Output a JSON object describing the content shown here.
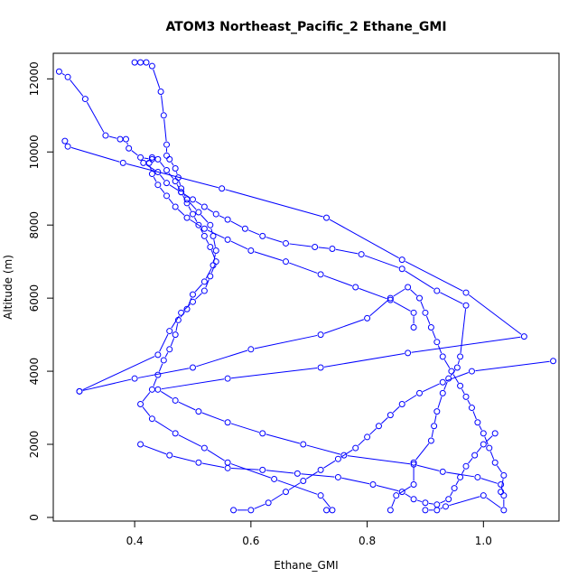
{
  "chart_data": {
    "type": "line",
    "title": "ATOM3 Northeast_Pacific_2 Ethane_GMI",
    "xlabel": "Ethane_GMI",
    "ylabel": "Altitude (m)",
    "xlim": [
      0.26,
      1.13
    ],
    "ylim": [
      -100,
      12700
    ],
    "xticks": [
      0.4,
      0.6,
      0.8,
      1.0
    ],
    "xtick_labels": [
      "0.4",
      "0.6",
      "0.8",
      "1.0"
    ],
    "yticks": [
      0,
      2000,
      4000,
      6000,
      8000,
      10000,
      12000
    ],
    "ytick_labels": [
      "0",
      "2000",
      "4000",
      "6000",
      "8000",
      "10000",
      "12000"
    ],
    "grid": false,
    "legend": "none",
    "line_color": "#0000ff",
    "marker": "open-circle",
    "series": [
      {
        "x": [
          0.27,
          0.285,
          0.315,
          0.35,
          0.375,
          0.385,
          0.39,
          0.41,
          0.43,
          0.415,
          0.44,
          0.455,
          0.48,
          0.5,
          0.52,
          0.54,
          0.56,
          0.59,
          0.62,
          0.66,
          0.71,
          0.74,
          0.79,
          0.86,
          0.92,
          0.97,
          0.96,
          0.955,
          0.94,
          0.93,
          0.92,
          0.915,
          0.91,
          0.88,
          0.88,
          0.85,
          0.84
        ],
        "y": [
          12200,
          12050,
          11450,
          10450,
          10350,
          10350,
          10100,
          9850,
          9800,
          9700,
          9450,
          9150,
          8900,
          8700,
          8500,
          8300,
          8150,
          7900,
          7700,
          7500,
          7400,
          7350,
          7200,
          6800,
          6200,
          5800,
          4400,
          4100,
          3800,
          3400,
          2900,
          2500,
          2100,
          1500,
          900,
          600,
          200
        ]
      },
      {
        "x": [
          0.28,
          0.285,
          0.38,
          0.55,
          0.73,
          0.86,
          0.97,
          1.07,
          0.87,
          0.72,
          0.56,
          0.44,
          0.47,
          0.51,
          0.56,
          0.62,
          0.69,
          0.76,
          0.88,
          0.93,
          0.99,
          1.03,
          1.035,
          1.035,
          1.0,
          0.935,
          0.92,
          0.9
        ],
        "y": [
          10300,
          10150,
          9700,
          9000,
          8200,
          7050,
          6150,
          4950,
          4500,
          4100,
          3800,
          3500,
          3200,
          2900,
          2600,
          2300,
          2000,
          1700,
          1450,
          1250,
          1100,
          900,
          600,
          200,
          600,
          300,
          200,
          200
        ]
      },
      {
        "x": [
          0.4,
          0.41,
          0.42,
          0.43,
          0.445,
          0.45,
          0.455,
          0.455,
          0.46,
          0.47,
          0.475,
          0.48,
          0.49,
          0.51,
          0.53,
          0.535,
          0.54,
          0.535,
          0.52,
          0.5,
          0.49,
          0.475,
          0.47,
          0.46,
          0.45,
          0.44,
          0.43,
          0.41,
          0.43,
          0.47,
          0.52,
          0.56,
          0.64,
          0.72,
          0.74,
          0.73
        ],
        "y": [
          12450,
          12450,
          12450,
          12350,
          11650,
          11000,
          10200,
          9900,
          9800,
          9550,
          9300,
          9000,
          8700,
          8350,
          8000,
          7700,
          7300,
          6900,
          6450,
          6100,
          5700,
          5400,
          5000,
          4600,
          4300,
          3900,
          3500,
          3100,
          2700,
          2300,
          1900,
          1500,
          1050,
          600,
          200,
          200
        ]
      },
      {
        "x": [
          0.305,
          0.44,
          0.46,
          0.48,
          0.5,
          0.52,
          0.53,
          0.54,
          0.53,
          0.52,
          0.51,
          0.5,
          0.49,
          0.48,
          0.47,
          0.455,
          0.44,
          0.43,
          0.425,
          0.43,
          0.44,
          0.455,
          0.47,
          0.49,
          0.52,
          0.56,
          0.6,
          0.66,
          0.72,
          0.78,
          0.84,
          0.88,
          0.88
        ],
        "y": [
          3450,
          4450,
          5100,
          5600,
          5900,
          6200,
          6600,
          7000,
          7400,
          7700,
          8000,
          8300,
          8600,
          8900,
          9200,
          9500,
          9800,
          9850,
          9700,
          9400,
          9100,
          8800,
          8500,
          8200,
          7900,
          7600,
          7300,
          7000,
          6650,
          6300,
          5950,
          5600,
          5200
        ]
      },
      {
        "x": [
          0.305,
          0.4,
          0.5,
          0.6,
          0.72,
          0.8,
          0.84,
          0.87,
          0.89,
          0.9,
          0.91,
          0.92,
          0.93,
          0.945,
          0.96,
          0.97,
          0.98,
          0.99,
          1.0,
          1.01,
          1.02,
          1.035,
          1.03
        ],
        "y": [
          3450,
          3800,
          4100,
          4600,
          5000,
          5450,
          6000,
          6300,
          6000,
          5600,
          5200,
          4800,
          4400,
          4000,
          3600,
          3300,
          3000,
          2600,
          2300,
          1900,
          1500,
          1150,
          700
        ]
      },
      {
        "x": [
          1.12,
          0.98,
          0.93,
          0.89,
          0.86,
          0.84,
          0.82,
          0.8,
          0.78,
          0.75,
          0.72,
          0.69,
          0.66,
          0.63,
          0.6,
          0.57
        ],
        "y": [
          4280,
          4000,
          3700,
          3400,
          3100,
          2800,
          2500,
          2200,
          1900,
          1600,
          1300,
          1000,
          700,
          400,
          200,
          200
        ]
      },
      {
        "x": [
          0.41,
          0.46,
          0.51,
          0.56,
          0.62,
          0.68,
          0.75,
          0.81,
          0.86,
          0.88,
          0.9,
          0.92,
          0.94,
          0.95,
          0.96,
          0.97,
          0.985,
          1.0,
          1.02
        ],
        "y": [
          2000,
          1700,
          1500,
          1350,
          1300,
          1200,
          1100,
          900,
          700,
          500,
          400,
          350,
          500,
          800,
          1100,
          1400,
          1700,
          2000,
          2300
        ]
      }
    ]
  }
}
